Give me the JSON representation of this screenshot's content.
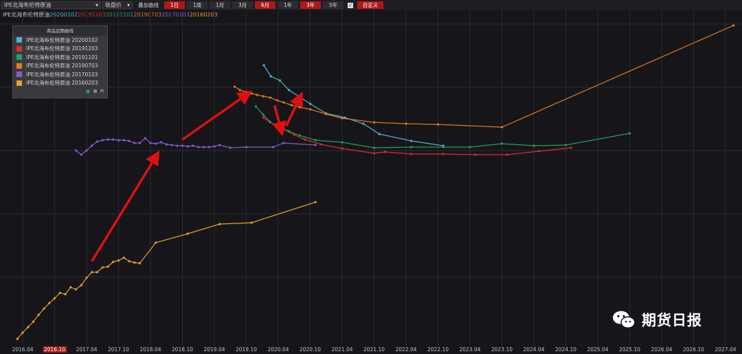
{
  "toolbar": {
    "commodity": "IPE北海布伦特原油",
    "price_type": "收盘价",
    "overlay_label": "叠加曲线",
    "periods": [
      "1日",
      "1周",
      "1月",
      "3月",
      "6月",
      "1年",
      "3年",
      "5年"
    ],
    "active_periods": [
      "1日",
      "6月",
      "3年"
    ],
    "custom_label": "自定义"
  },
  "subtitle": {
    "prefix": "IPE北海布伦特原油",
    "dates": [
      {
        "text": "20200102",
        "color": "#4fb3c8"
      },
      {
        "text": "20191203",
        "color": "#d63030"
      },
      {
        "text": "20191101",
        "color": "#22a060"
      },
      {
        "text": "20190703",
        "color": "#e07a20"
      },
      {
        "text": "20170103",
        "color": "#8a5ad0"
      },
      {
        "text": "20160203",
        "color": "#e8a030"
      }
    ]
  },
  "legend": {
    "title": "商品远期曲线",
    "items": [
      {
        "label": "IPE北海布伦特原油 20200102",
        "color": "#4fb3c8"
      },
      {
        "label": "IPE北海布伦特原油 20191203",
        "color": "#d63030"
      },
      {
        "label": "IPE北海布伦特原油 20191101",
        "color": "#22a060"
      },
      {
        "label": "IPE北海布伦特原油 20190703",
        "color": "#e07a20"
      },
      {
        "label": "IPE北海布伦特原油 20170103",
        "color": "#8a5ad0"
      },
      {
        "label": "IPE北海布伦特原油 20160203",
        "color": "#e8a030"
      }
    ]
  },
  "watermark": "期货日报",
  "chart_data": {
    "type": "line",
    "x_unit": "months since 2016.01",
    "xticks": [
      {
        "label": "2016.04",
        "x": 3,
        "highlight": false
      },
      {
        "label": "2016.10",
        "x": 9,
        "highlight": true
      },
      {
        "label": "2017.04",
        "x": 15,
        "highlight": false
      },
      {
        "label": "2017.10",
        "x": 21,
        "highlight": false
      },
      {
        "label": "2018.04",
        "x": 27,
        "highlight": false
      },
      {
        "label": "2018.10",
        "x": 33,
        "highlight": false
      },
      {
        "label": "2019.04",
        "x": 39,
        "highlight": false
      },
      {
        "label": "2019.10",
        "x": 45,
        "highlight": false
      },
      {
        "label": "2020.04",
        "x": 51,
        "highlight": false
      },
      {
        "label": "2020.10",
        "x": 57,
        "highlight": false
      },
      {
        "label": "2021.04",
        "x": 63,
        "highlight": false
      },
      {
        "label": "2021.10",
        "x": 69,
        "highlight": false
      },
      {
        "label": "2022.04",
        "x": 75,
        "highlight": false
      },
      {
        "label": "2022.10",
        "x": 81,
        "highlight": false
      },
      {
        "label": "2023.04",
        "x": 87,
        "highlight": false
      },
      {
        "label": "2023.10",
        "x": 93,
        "highlight": false
      },
      {
        "label": "2024.04",
        "x": 99,
        "highlight": false
      },
      {
        "label": "2024.10",
        "x": 105,
        "highlight": false
      },
      {
        "label": "2025.04",
        "x": 111,
        "highlight": false
      },
      {
        "label": "2025.10",
        "x": 117,
        "highlight": false
      },
      {
        "label": "2026.04",
        "x": 123,
        "highlight": false
      },
      {
        "label": "2026.10",
        "x": 129,
        "highlight": false
      },
      {
        "label": "2027.04",
        "x": 135,
        "highlight": false
      }
    ],
    "grid": true,
    "series": [
      {
        "name": "20200102",
        "color": "#4fb3c8",
        "points": [
          [
            48.3,
            95
          ],
          [
            49.6,
            111
          ],
          [
            51.3,
            117
          ],
          [
            53,
            131
          ],
          [
            55,
            141
          ],
          [
            57,
            151
          ],
          [
            60,
            165
          ],
          [
            63.5,
            171
          ],
          [
            67,
            180
          ],
          [
            70,
            195
          ],
          [
            76,
            205
          ],
          [
            82,
            212
          ]
        ]
      },
      {
        "name": "20191203",
        "color": "#d63030",
        "points": [
          [
            48.2,
            171
          ],
          [
            49.5,
            178
          ],
          [
            50.5,
            182
          ],
          [
            52,
            188
          ],
          [
            54,
            196
          ],
          [
            56,
            203
          ],
          [
            59,
            210
          ],
          [
            63,
            216
          ],
          [
            69,
            223
          ],
          [
            71,
            221
          ],
          [
            76,
            224
          ],
          [
            82,
            224
          ],
          [
            88,
            225
          ],
          [
            94,
            225
          ],
          [
            100,
            220
          ],
          [
            106,
            215
          ]
        ]
      },
      {
        "name": "20191101",
        "color": "#22a060",
        "points": [
          [
            46.8,
            155
          ],
          [
            48.2,
            167
          ],
          [
            49.4,
            177
          ],
          [
            51,
            185
          ],
          [
            53,
            191
          ],
          [
            55,
            197
          ],
          [
            58,
            204
          ],
          [
            63,
            207
          ],
          [
            69,
            215
          ],
          [
            76,
            214
          ],
          [
            82,
            214
          ],
          [
            87,
            214
          ],
          [
            93,
            209
          ],
          [
            99,
            212
          ],
          [
            105,
            211
          ],
          [
            117,
            194
          ]
        ]
      },
      {
        "name": "20190703",
        "color": "#e07a20",
        "points": [
          [
            42.8,
            126
          ],
          [
            43.8,
            131
          ],
          [
            45,
            134
          ],
          [
            46,
            136
          ],
          [
            47,
            138
          ],
          [
            48.2,
            140
          ],
          [
            49.5,
            142
          ],
          [
            50.8,
            146
          ],
          [
            52,
            149
          ],
          [
            53.5,
            153
          ],
          [
            55,
            156
          ],
          [
            57,
            159
          ],
          [
            60,
            166
          ],
          [
            63,
            172
          ],
          [
            69,
            178
          ],
          [
            75,
            180
          ],
          [
            81,
            181
          ],
          [
            93,
            185
          ],
          [
            136.5,
            37
          ]
        ]
      },
      {
        "name": "20170103",
        "color": "#8a5ad0",
        "points": [
          [
            13,
            219
          ],
          [
            14,
            225
          ],
          [
            15,
            219
          ],
          [
            16,
            212
          ],
          [
            17,
            206
          ],
          [
            18,
            204
          ],
          [
            19,
            203
          ],
          [
            20,
            203
          ],
          [
            21,
            204
          ],
          [
            22,
            204
          ],
          [
            23,
            205
          ],
          [
            24,
            208
          ],
          [
            25,
            208
          ],
          [
            26,
            201
          ],
          [
            27,
            208
          ],
          [
            28,
            209
          ],
          [
            29,
            207
          ],
          [
            30,
            210
          ],
          [
            31,
            211
          ],
          [
            32,
            212
          ],
          [
            33,
            212
          ],
          [
            34,
            213
          ],
          [
            35,
            212
          ],
          [
            36,
            214
          ],
          [
            37,
            214
          ],
          [
            38,
            214
          ],
          [
            39,
            213
          ],
          [
            40,
            211
          ],
          [
            42,
            215
          ],
          [
            45,
            214
          ],
          [
            50,
            214
          ],
          [
            52,
            208
          ],
          [
            58,
            211
          ]
        ]
      },
      {
        "name": "20160203",
        "color": "#e8a030",
        "points": [
          [
            2,
            493
          ],
          [
            3,
            484
          ],
          [
            4,
            476
          ],
          [
            5,
            468
          ],
          [
            6,
            458
          ],
          [
            7,
            449
          ],
          [
            8,
            441
          ],
          [
            9,
            434
          ],
          [
            10,
            426
          ],
          [
            11,
            428
          ],
          [
            12,
            418
          ],
          [
            13,
            421
          ],
          [
            14,
            415
          ],
          [
            15,
            404
          ],
          [
            16,
            396
          ],
          [
            17,
            396
          ],
          [
            18,
            389
          ],
          [
            19,
            388
          ],
          [
            20,
            381
          ],
          [
            21,
            379
          ],
          [
            22,
            375
          ],
          [
            23,
            380
          ],
          [
            24,
            382
          ],
          [
            25,
            383
          ],
          [
            28,
            353
          ],
          [
            34,
            340
          ],
          [
            40,
            326
          ],
          [
            46,
            324
          ],
          [
            58,
            294
          ]
        ]
      }
    ],
    "annotations": [
      {
        "type": "arrow",
        "color": "#e01010",
        "from": [
          16,
          380
        ],
        "to": [
          28,
          228
        ]
      },
      {
        "type": "arrow",
        "color": "#e01010",
        "from": [
          33,
          203
        ],
        "to": [
          45,
          138
        ]
      },
      {
        "type": "arrow",
        "color": "#e01010",
        "from": [
          50.3,
          153
        ],
        "to": [
          51.5,
          188
        ]
      },
      {
        "type": "arrow",
        "color": "#e01010",
        "from": [
          52.5,
          183
        ],
        "to": [
          55,
          143
        ]
      }
    ]
  }
}
